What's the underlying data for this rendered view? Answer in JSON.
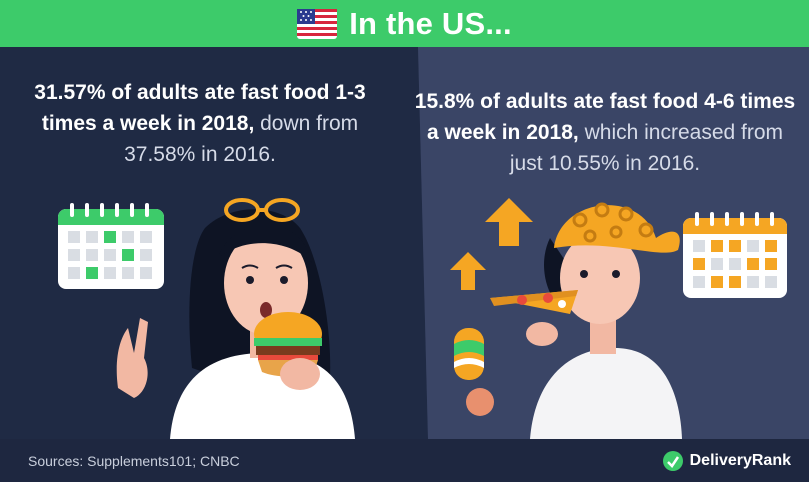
{
  "header": {
    "title": "In the US...",
    "flag_icon": "us-flag-icon"
  },
  "left_stat": {
    "bold_text": "31.57% of adults ate fast food 1-3 times a week in 2018,",
    "light_text": " down from 37.58% in 2016."
  },
  "right_stat": {
    "bold_text": "15.8% of adults ate fast food 4-6 times a week in 2018,",
    "light_text": " which increased from just 10.55% in 2016."
  },
  "footer": {
    "sources": "Sources: Supplements101; CNBC",
    "brand_name": "DeliveryRank"
  },
  "colors": {
    "header_green": "#3dcb6a",
    "left_bg": "#1f2a44",
    "right_bg": "#3a4566",
    "accent_orange": "#f5a623"
  }
}
